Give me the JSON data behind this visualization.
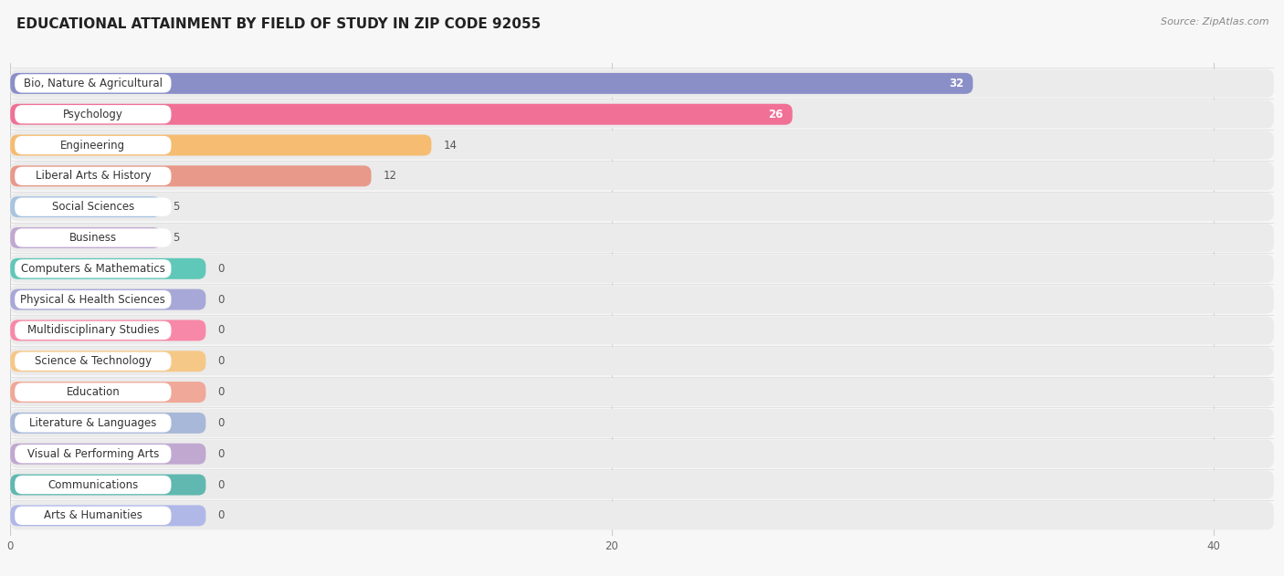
{
  "title": "EDUCATIONAL ATTAINMENT BY FIELD OF STUDY IN ZIP CODE 92055",
  "source": "Source: ZipAtlas.com",
  "categories": [
    "Bio, Nature & Agricultural",
    "Psychology",
    "Engineering",
    "Liberal Arts & History",
    "Social Sciences",
    "Business",
    "Computers & Mathematics",
    "Physical & Health Sciences",
    "Multidisciplinary Studies",
    "Science & Technology",
    "Education",
    "Literature & Languages",
    "Visual & Performing Arts",
    "Communications",
    "Arts & Humanities"
  ],
  "values": [
    32,
    26,
    14,
    12,
    5,
    5,
    0,
    0,
    0,
    0,
    0,
    0,
    0,
    0,
    0
  ],
  "bar_colors": [
    "#8b8fc8",
    "#f07096",
    "#f5bc72",
    "#e8998a",
    "#a8c4e0",
    "#c0a8d0",
    "#60c8b8",
    "#a8a8d8",
    "#f888a8",
    "#f5c888",
    "#f0a898",
    "#a8b8d8",
    "#c0a8d0",
    "#60b8b0",
    "#b0b8e8"
  ],
  "xlim_max": 42,
  "row_bg_color": "#eeeeee",
  "bar_bg_color": "#f0f0f0",
  "background_color": "#f7f7f7",
  "label_bg_color": "#ffffff",
  "title_fontsize": 11,
  "label_fontsize": 8.5,
  "value_fontsize": 8.5,
  "tick_fontsize": 8.5,
  "source_fontsize": 8
}
